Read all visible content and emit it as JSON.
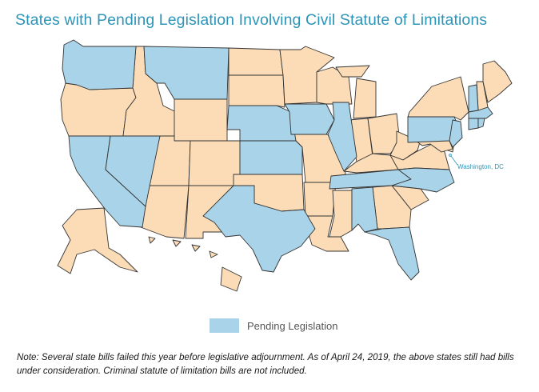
{
  "title": "States with Pending Legislation Involving Civil Statute of Limitations",
  "colors": {
    "pending": "#a9d3e8",
    "other": "#fbdcb7",
    "border": "#333333",
    "title": "#2e95b8",
    "dc_label": "#2e95b8"
  },
  "map": {
    "dc_label": "Washington, DC",
    "pending_states": [
      "WA",
      "MT",
      "CA",
      "NV",
      "NE",
      "KS",
      "TX",
      "IA",
      "IL",
      "TN",
      "NC",
      "AL",
      "FL",
      "PA",
      "NJ",
      "VT",
      "MA",
      "CT",
      "RI",
      "DC"
    ],
    "other_states": [
      "OR",
      "ID",
      "WY",
      "UT",
      "AZ",
      "CO",
      "NM",
      "ND",
      "SD",
      "OK",
      "MN",
      "WI",
      "MO",
      "AR",
      "LA",
      "MS",
      "MI",
      "IN",
      "OH",
      "KY",
      "WV",
      "VA",
      "GA",
      "SC",
      "NY",
      "NH",
      "ME",
      "DE",
      "MD",
      "AK",
      "HI"
    ]
  },
  "legend": {
    "label": "Pending Legislation"
  },
  "note": "Note: Several state bills failed this year before legislative adjournment. As of April 24, 2019, the above states still had bills under consideration. Criminal statute of limitation bills are not included."
}
